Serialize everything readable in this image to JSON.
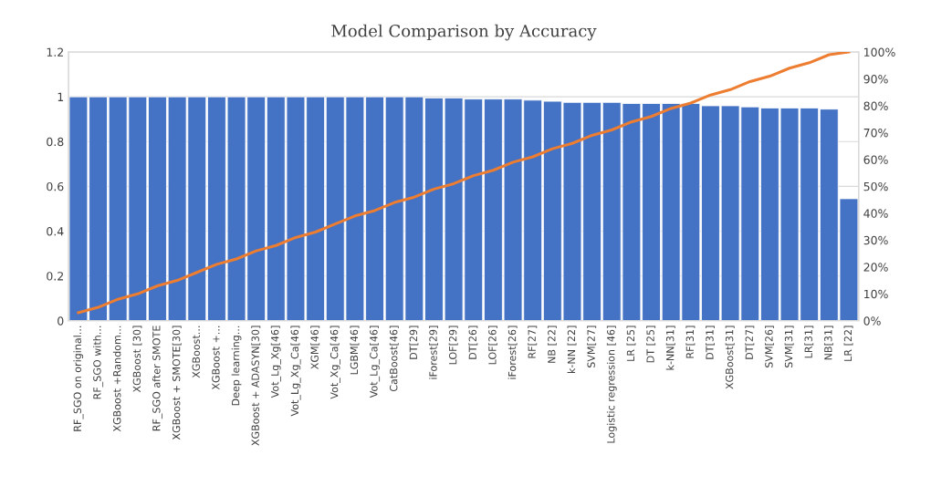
{
  "chart_data": {
    "type": "bar",
    "title": "Model Comparison by Accuracy",
    "categories": [
      "RF_SGO on original...",
      "RF_SGO with...",
      "XGBoost +Random...",
      "XGBoost [30]",
      "RF_SGO after SMOTE",
      "XGBoost + SMOTE[30]",
      "XGBoost...",
      "XGBoost +...",
      "Deep learning...",
      "XGBoost + ADASYN[30]",
      "Vot_Lg_Xg[46]",
      "Vot_Lg_Xg_Ca[46]",
      "XGM[46]",
      "Vot_Xg_Ca[46]",
      "LGBM[46]",
      "Vot_Lg_Ca[46]",
      "CatBoost[46]",
      "DT[29]",
      "iForest[29]",
      "LOF[29]",
      "DT[26]",
      "LOF[26]",
      "iForest[26]",
      "RF[27]",
      "NB [22]",
      "k-NN [22]",
      "SVM[27]",
      "Logistic regression [46]",
      "LR [25]",
      "DT [25]",
      "k-NN[31]",
      "RF[31]",
      "DT[31]",
      "XGBoost[31]",
      "DT[27]",
      "SVM[26]",
      "SVM[31]",
      "LR[31]",
      "NB[31]",
      "LR [22]"
    ],
    "series": [
      {
        "color": "#4472c4",
        "values": [
          1,
          1,
          1,
          1,
          1,
          1,
          1,
          1,
          1,
          1,
          1,
          1,
          1,
          1,
          1,
          1,
          1,
          1,
          0.995,
          0.995,
          0.99,
          0.99,
          0.99,
          0.985,
          0.98,
          0.975,
          0.975,
          0.975,
          0.97,
          0.97,
          0.97,
          0.97,
          0.96,
          0.96,
          0.955,
          0.95,
          0.95,
          0.95,
          0.945,
          0.545
        ]
      },
      {
        "type": "line",
        "axis": "y2",
        "color": "#ed7d31",
        "values": [
          3,
          5,
          8,
          10,
          13,
          15,
          18,
          21,
          23,
          26,
          28,
          31,
          33,
          36,
          39,
          41,
          44,
          46,
          49,
          51,
          54,
          56,
          59,
          61,
          64,
          66,
          69,
          71,
          74,
          76,
          79,
          81,
          84,
          86,
          89,
          91,
          94,
          96,
          99,
          100
        ]
      }
    ],
    "ylim": [
      0,
      1.2
    ],
    "yticks": [
      0,
      0.2,
      0.4,
      0.6,
      0.8,
      1,
      1.2
    ],
    "y2lim": [
      0,
      100
    ],
    "y2ticks": [
      {
        "value": 0,
        "label": "0%"
      },
      {
        "value": 10,
        "label": "10%"
      },
      {
        "value": 20,
        "label": "20%"
      },
      {
        "value": 30,
        "label": "30%"
      },
      {
        "value": 40,
        "label": "40%"
      },
      {
        "value": 50,
        "label": "50%"
      },
      {
        "value": 60,
        "label": "60%"
      },
      {
        "value": 70,
        "label": "70%"
      },
      {
        "value": 80,
        "label": "80%"
      },
      {
        "value": 90,
        "label": "90%"
      },
      {
        "value": 100,
        "label": "100%"
      }
    ],
    "grid": "y",
    "marker": "none"
  }
}
